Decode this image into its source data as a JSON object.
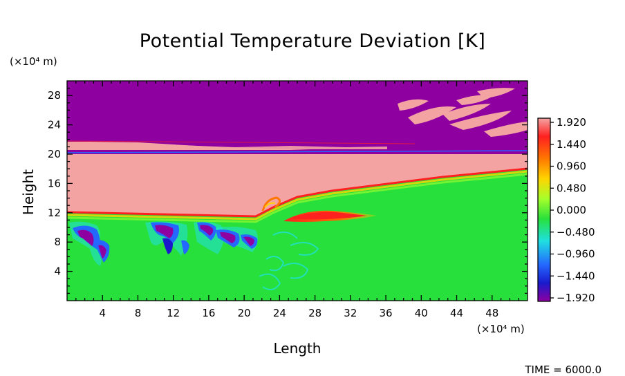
{
  "chart_data": {
    "type": "heatmap",
    "title": "Potential Temperature Deviation [K]",
    "xlabel": "Length",
    "ylabel": "Height",
    "x_unit_label": "(×10⁴ m)",
    "y_unit_label": "(×10⁴ m)",
    "time_label": "TIME = 6000.0",
    "xlim": [
      0,
      52
    ],
    "ylim": [
      0,
      30
    ],
    "x_ticks": [
      4,
      8,
      12,
      16,
      20,
      24,
      28,
      32,
      36,
      40,
      44,
      48
    ],
    "y_ticks": [
      4,
      8,
      12,
      16,
      20,
      24,
      28
    ],
    "colorbar": {
      "range": [
        -1.92,
        1.92
      ],
      "tick_labels": [
        "1.920",
        "1.440",
        "0.960",
        "0.480",
        "0.000",
        "−0.480",
        "−0.960",
        "−1.440",
        "−1.920"
      ],
      "colors_top_to_bottom": [
        "#f4a3a3",
        "#ff2020",
        "#ff7700",
        "#ffd400",
        "#a6ff2b",
        "#28e03c",
        "#1fe0e0",
        "#2468ff",
        "#1a1acc",
        "#8e00a0"
      ]
    },
    "field_regions": {
      "upper_layer_value": -1.92,
      "upper_layer_color": "#8e00a0",
      "middle_layer_value": 1.92,
      "middle_layer_color": "#f4a3a3",
      "lower_layer_value": 0.0,
      "lower_layer_color": "#28e03c",
      "warm_core_color": "#ff2020",
      "cold_anomaly_color": "#2a2ad8"
    }
  }
}
